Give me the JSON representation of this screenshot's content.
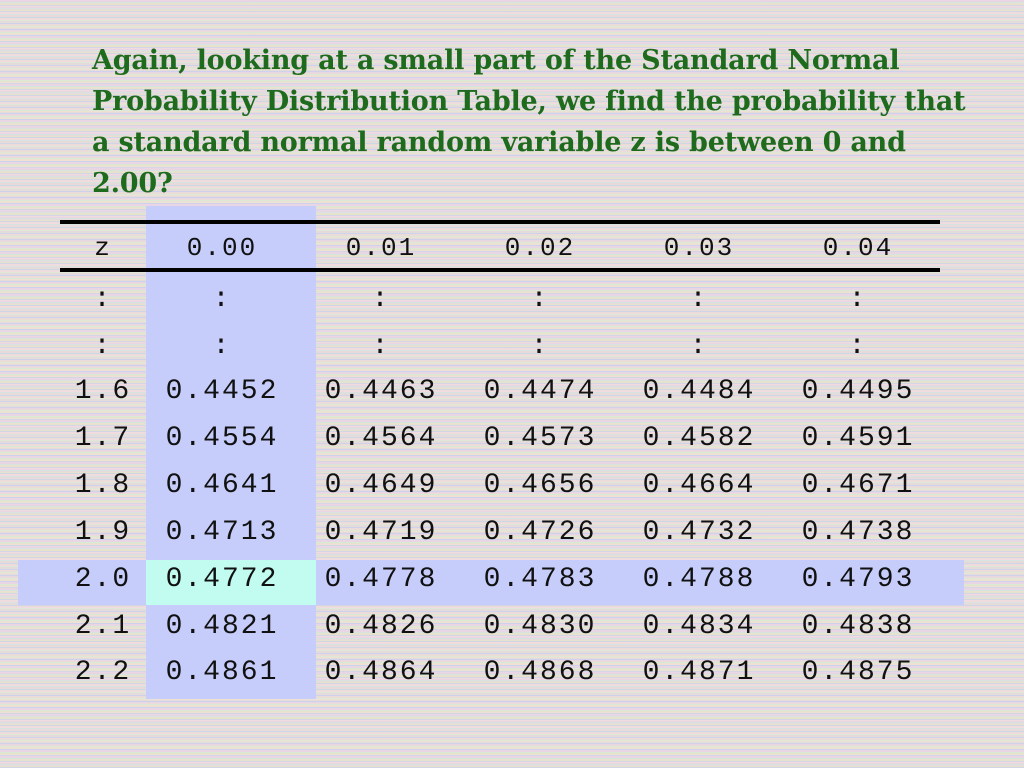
{
  "slide": {
    "text": "Again, looking at a small part of the Standard Normal Probability Distribution Table, we find the probability that a standard normal random variable z is between 0 and 2.00?"
  },
  "table": {
    "headers": [
      "z",
      "0.00",
      "0.01",
      "0.02",
      "0.03",
      "0.04"
    ],
    "rows": [
      [
        ":",
        ":",
        ":",
        ":",
        ":",
        ":"
      ],
      [
        ":",
        ":",
        ":",
        ":",
        ":",
        ":"
      ],
      [
        "1.6",
        "0.4452",
        "0.4463",
        "0.4474",
        "0.4484",
        "0.4495"
      ],
      [
        "1.7",
        "0.4554",
        "0.4564",
        "0.4573",
        "0.4582",
        "0.4591"
      ],
      [
        "1.8",
        "0.4641",
        "0.4649",
        "0.4656",
        "0.4664",
        "0.4671"
      ],
      [
        "1.9",
        "0.4713",
        "0.4719",
        "0.4726",
        "0.4732",
        "0.4738"
      ],
      [
        "2.0",
        "0.4772",
        "0.4778",
        "0.4783",
        "0.4788",
        "0.4793"
      ],
      [
        "2.1",
        "0.4821",
        "0.4826",
        "0.4830",
        "0.4834",
        "0.4838"
      ],
      [
        "2.2",
        "0.4861",
        "0.4864",
        "0.4868",
        "0.4871",
        "0.4875"
      ]
    ],
    "highlight_color": "#c6cdfb",
    "answer_cell_color": "#c2fbf0"
  }
}
